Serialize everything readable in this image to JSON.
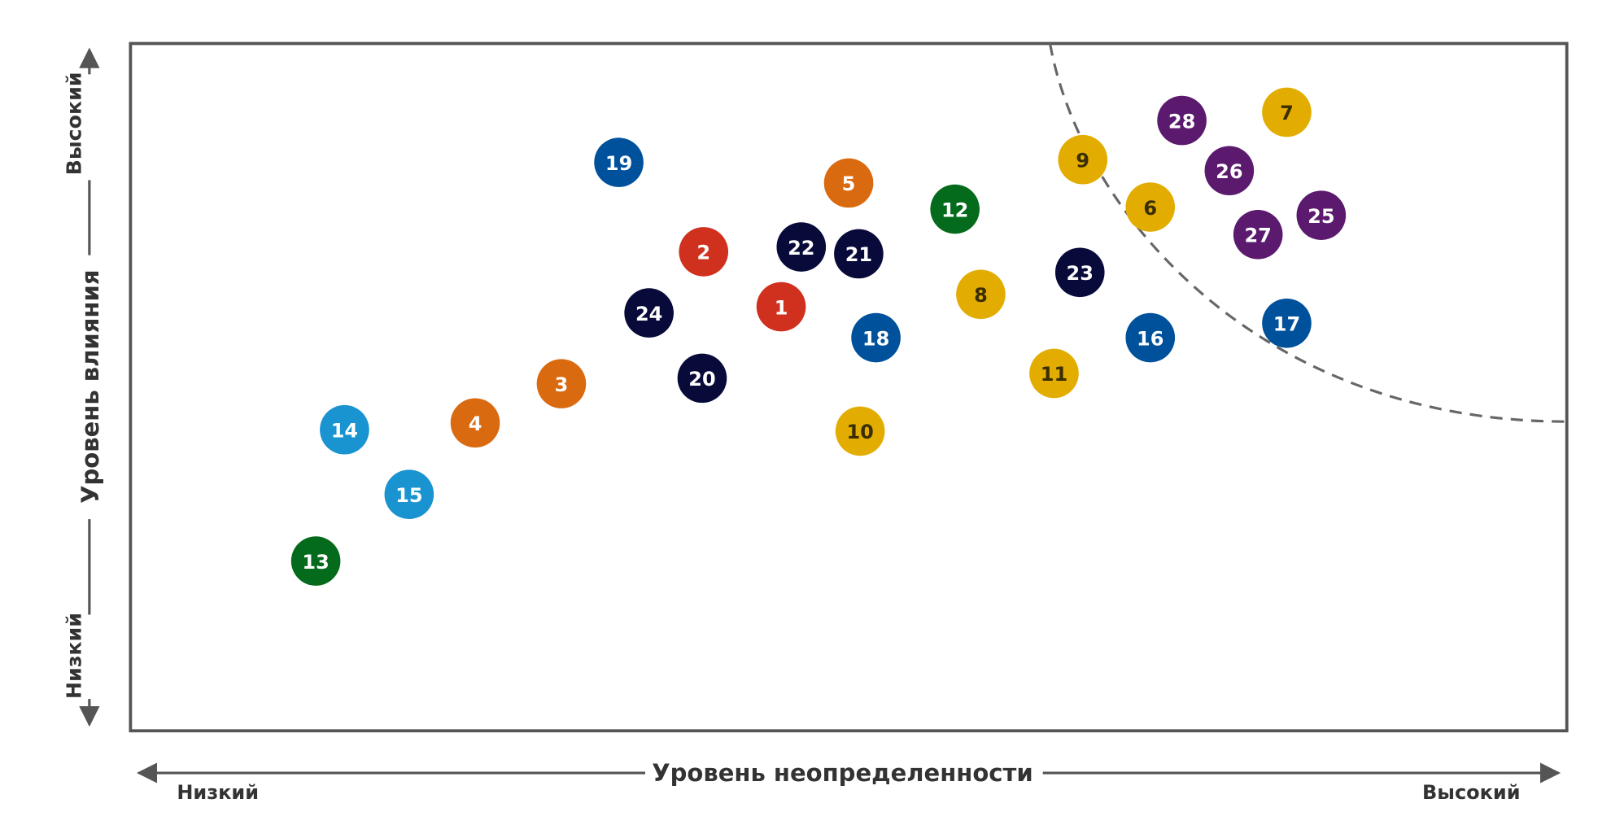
{
  "chart_data": {
    "type": "scatter",
    "x_label": "Уровень неопределенности",
    "y_label": "Уровень влияния",
    "x_low_label": "Низкий",
    "x_high_label": "Высокий",
    "y_low_label": "Низкий",
    "y_high_label": "Высокий",
    "xlim": [
      0,
      100
    ],
    "ylim": [
      0,
      100
    ],
    "labels": [
      "1",
      "2",
      "3",
      "4",
      "5",
      "6",
      "7",
      "8",
      "9",
      "10",
      "11",
      "12",
      "13",
      "14",
      "15",
      "16",
      "17",
      "18",
      "19",
      "20",
      "21",
      "22",
      "23",
      "24",
      "25",
      "26",
      "27",
      "28"
    ],
    "x": [
      45.3,
      39.9,
      30.0,
      24.0,
      50.0,
      71.0,
      80.5,
      59.2,
      66.3,
      50.8,
      64.3,
      57.4,
      12.9,
      14.9,
      19.4,
      71.0,
      80.5,
      51.9,
      34.0,
      39.8,
      50.7,
      46.7,
      66.1,
      36.1,
      82.9,
      76.5,
      78.5,
      73.2
    ],
    "values": [
      61.7,
      69.7,
      50.5,
      44.8,
      79.7,
      76.2,
      90.0,
      63.5,
      83.1,
      43.6,
      52.0,
      75.9,
      24.7,
      43.8,
      34.4,
      57.2,
      59.3,
      57.2,
      82.7,
      51.3,
      69.4,
      70.4,
      66.7,
      60.8,
      75.0,
      81.5,
      72.2,
      88.8
    ],
    "colors": [
      "#d0311e",
      "#d0311e",
      "#d96a0f",
      "#d96a0f",
      "#d96a0f",
      "#e2ad00",
      "#e2ad00",
      "#e2ad00",
      "#e2ad00",
      "#e2ad00",
      "#e2ad00",
      "#056b1c",
      "#056b1c",
      "#1a93d1",
      "#1a93d1",
      "#00519c",
      "#00519c",
      "#00519c",
      "#00519c",
      "#080a3a",
      "#080a3a",
      "#080a3a",
      "#080a3a",
      "#080a3a",
      "#5b1a6e",
      "#5b1a6e",
      "#5b1a6e",
      "#5b1a6e"
    ],
    "label_colors": [
      "#fff",
      "#fff",
      "#fff",
      "#fff",
      "#fff",
      "#3a2e00",
      "#3a2e00",
      "#3a2e00",
      "#3a2e00",
      "#3a2e00",
      "#3a2e00",
      "#fff",
      "#fff",
      "#fff",
      "#fff",
      "#fff",
      "#fff",
      "#fff",
      "#fff",
      "#fff",
      "#fff",
      "#fff",
      "#fff",
      "#fff",
      "#fff",
      "#fff",
      "#fff",
      "#fff"
    ]
  }
}
